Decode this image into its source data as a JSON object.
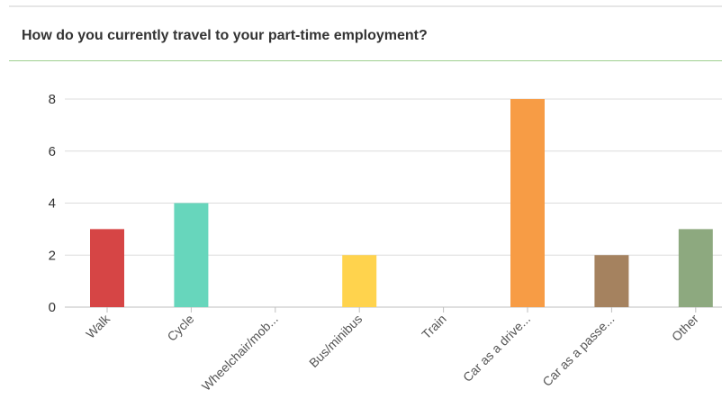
{
  "question": {
    "title": "How do you currently travel to your part-time employment?"
  },
  "chart_data": {
    "type": "bar",
    "categories": [
      "Walk",
      "Cycle",
      "Wheelchair/mob...",
      "Bus/minibus",
      "Train",
      "Car as a drive...",
      "Car as a passe...",
      "Other"
    ],
    "values": [
      3,
      4,
      0,
      2,
      0,
      8,
      2,
      3
    ],
    "colors": [
      "#d64545",
      "#67d6bc",
      "#cccccc",
      "#ffd34d",
      "#cccccc",
      "#f79c45",
      "#a5825f",
      "#8da97f"
    ],
    "yticks": [
      0,
      2,
      4,
      6,
      8
    ],
    "ylim": [
      0,
      8
    ],
    "grid": true
  }
}
